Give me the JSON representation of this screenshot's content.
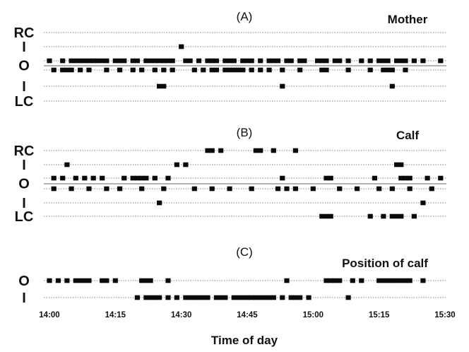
{
  "chart_data": {
    "type": "scatter",
    "x_axis": {
      "label": "Time of day",
      "range": [
        "14:00",
        "15:30"
      ],
      "ticks": [
        "14:00",
        "14:15",
        "14:30",
        "14:45",
        "15:00",
        "15:15",
        "15:30"
      ]
    },
    "panels": [
      {
        "title": "(A)",
        "name": "Mother",
        "rows": [
          {
            "label": "RC",
            "times": []
          },
          {
            "label": "I",
            "times": [
              "14:30"
            ]
          },
          {
            "label": "O",
            "times": [
              "14:00",
              "14:03",
              "14:05",
              "14:06",
              "14:07",
              "14:08",
              "14:09",
              "14:10",
              "14:11",
              "14:12",
              "14:13",
              "14:15",
              "14:16",
              "14:17",
              "14:19",
              "14:20",
              "14:22",
              "14:23",
              "14:24",
              "14:25",
              "14:26",
              "14:27",
              "14:28",
              "14:31",
              "14:32",
              "14:34",
              "14:36",
              "14:37",
              "14:38",
              "14:40",
              "14:41",
              "14:42",
              "14:44",
              "14:45",
              "14:46",
              "14:48",
              "14:50",
              "14:51",
              "14:52",
              "14:54",
              "14:55",
              "14:57",
              "14:58",
              "15:01",
              "15:02",
              "15:03",
              "15:05",
              "15:06",
              "15:08",
              "15:11",
              "15:13",
              "15:15",
              "15:16",
              "15:17",
              "15:19",
              "15:20",
              "15:21",
              "15:23",
              "15:25",
              "15:29"
            ]
          },
          {
            "label": "O",
            "times": [
              "14:01",
              "14:03",
              "14:04",
              "14:05",
              "14:07",
              "14:09",
              "14:13",
              "14:16",
              "14:19",
              "14:21",
              "14:24",
              "14:26",
              "14:28",
              "14:33",
              "14:35",
              "14:37",
              "14:38",
              "14:40",
              "14:41",
              "14:42",
              "14:43",
              "14:44",
              "14:46",
              "14:48",
              "14:50",
              "14:53",
              "14:57",
              "15:02",
              "15:03",
              "15:08",
              "15:13",
              "15:16",
              "15:17",
              "15:18",
              "15:21"
            ]
          },
          {
            "label": "I",
            "times": [
              "14:25",
              "14:26",
              "14:53",
              "15:18"
            ]
          },
          {
            "label": "LC",
            "times": []
          }
        ]
      },
      {
        "title": "(B)",
        "name": "Calf",
        "rows": [
          {
            "label": "RC",
            "times": [
              "14:36",
              "14:37",
              "14:39",
              "14:47",
              "14:48",
              "14:51",
              "14:56"
            ]
          },
          {
            "label": "I",
            "times": [
              "14:04",
              "14:29",
              "14:31",
              "15:19",
              "15:20"
            ]
          },
          {
            "label": "O",
            "times": [
              "14:01",
              "14:03",
              "14:06",
              "14:08",
              "14:10",
              "14:12",
              "14:17",
              "14:19",
              "14:20",
              "14:21",
              "14:22",
              "14:24",
              "14:27",
              "14:53",
              "15:03",
              "15:04",
              "15:14",
              "15:20",
              "15:21",
              "15:22",
              "15:26",
              "15:29"
            ]
          },
          {
            "label": "O",
            "times": [
              "14:01",
              "14:05",
              "14:09",
              "14:13",
              "14:16",
              "14:21",
              "14:26",
              "14:33",
              "14:37",
              "14:41",
              "14:46",
              "14:52",
              "14:54",
              "14:56",
              "15:00",
              "15:06",
              "15:10",
              "15:15",
              "15:18",
              "15:22",
              "15:27"
            ]
          },
          {
            "label": "I",
            "times": [
              "14:25",
              "15:25"
            ]
          },
          {
            "label": "LC",
            "times": [
              "15:02",
              "15:03",
              "15:04",
              "15:13",
              "15:16",
              "15:18",
              "15:19",
              "15:20",
              "15:23"
            ]
          }
        ]
      },
      {
        "title": "(C)",
        "name": "Position of calf",
        "rows": [
          {
            "label": "O",
            "times": [
              "14:00",
              "14:02",
              "14:04",
              "14:06",
              "14:07",
              "14:08",
              "14:09",
              "14:12",
              "14:13",
              "14:15",
              "14:21",
              "14:22",
              "14:23",
              "14:27",
              "14:54",
              "15:03",
              "15:04",
              "15:05",
              "15:06",
              "15:09",
              "15:11",
              "15:15",
              "15:16",
              "15:17",
              "15:18",
              "15:19",
              "15:20",
              "15:21",
              "15:22",
              "15:25"
            ]
          },
          {
            "label": "I",
            "times": [
              "14:20",
              "14:22",
              "14:23",
              "14:24",
              "14:25",
              "14:27",
              "14:29",
              "14:31",
              "14:32",
              "14:33",
              "14:34",
              "14:35",
              "14:36",
              "14:38",
              "14:39",
              "14:40",
              "14:42",
              "14:43",
              "14:44",
              "14:45",
              "14:46",
              "14:47",
              "14:48",
              "14:49",
              "14:50",
              "14:51",
              "14:53",
              "14:55",
              "14:56",
              "14:57",
              "14:59",
              "15:08"
            ]
          }
        ]
      }
    ]
  }
}
